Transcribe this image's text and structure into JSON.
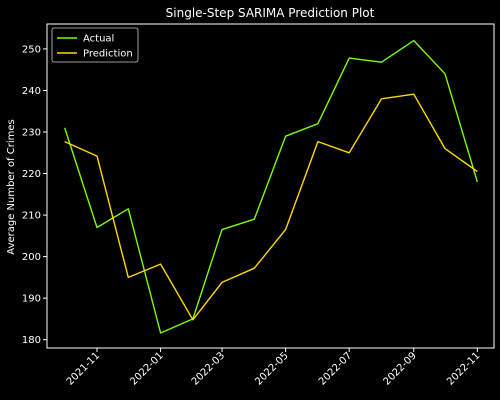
{
  "colors": {
    "background": "#000000",
    "axes": "#ffffff",
    "text": "#ffffff",
    "actual": "#7CFC00",
    "prediction": "#FFD700"
  },
  "chart_data": {
    "type": "line",
    "title": "Single-Step SARIMA Prediction Plot",
    "xlabel": "",
    "ylabel": "Average Number of Crimes",
    "x_ticks": [
      "2021-11",
      "2022-01",
      "2022-03",
      "2022-05",
      "2022-07",
      "2022-09",
      "2022-11"
    ],
    "y_ticks": [
      180,
      190,
      200,
      210,
      220,
      230,
      240,
      250
    ],
    "ylim": [
      178,
      256
    ],
    "xlim": [
      "2021-09-14",
      "2022-11-17"
    ],
    "grid": false,
    "legend_position": "top-left",
    "x": [
      "2021-10-01",
      "2021-11-01",
      "2021-12-01",
      "2022-01-01",
      "2022-02-01",
      "2022-03-01",
      "2022-04-01",
      "2022-05-01",
      "2022-06-01",
      "2022-07-01",
      "2022-08-01",
      "2022-09-01",
      "2022-10-01",
      "2022-11-01"
    ],
    "series": [
      {
        "name": "Actual",
        "color": "#7CFC00",
        "values": [
          231.0,
          207.0,
          211.5,
          181.6,
          185.0,
          206.5,
          209.0,
          229.0,
          232.0,
          247.8,
          246.8,
          252.0,
          244.0,
          218.0
        ]
      },
      {
        "name": "Prediction",
        "color": "#FFD700",
        "values": [
          227.7,
          224.2,
          195.0,
          198.2,
          184.8,
          193.8,
          197.2,
          206.5,
          227.7,
          225.0,
          238.0,
          239.1,
          226.0,
          220.5
        ]
      }
    ]
  }
}
